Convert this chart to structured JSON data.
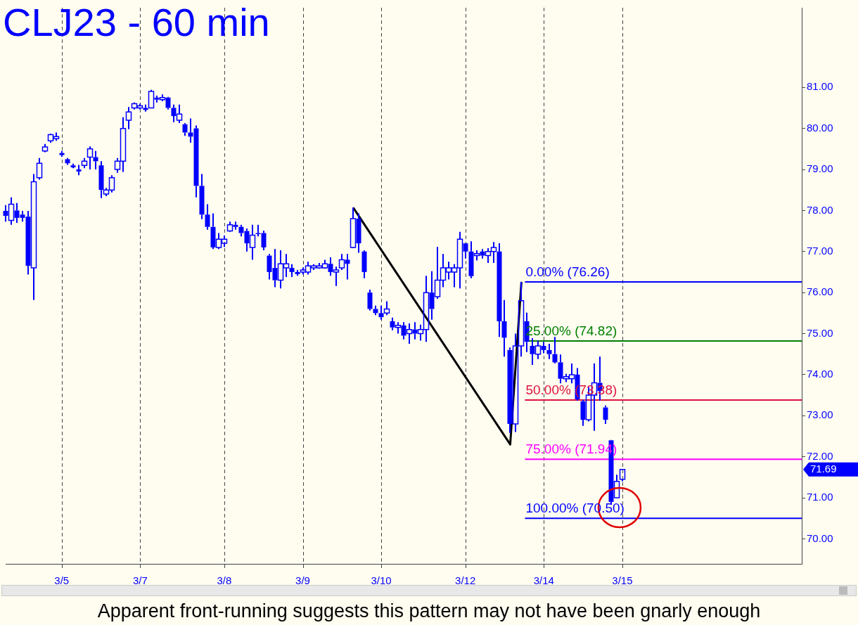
{
  "chart_data": {
    "type": "candlestick",
    "title": "CLJ23 - 60 min",
    "color": "#0000ff",
    "categories": [
      null,
      null,
      null,
      null,
      null,
      null,
      null,
      null,
      null,
      null,
      "3/5",
      null,
      null,
      null,
      null,
      null,
      null,
      null,
      null,
      null,
      null,
      null,
      null,
      null,
      "3/7",
      null,
      null,
      null,
      null,
      null,
      null,
      null,
      null,
      null,
      null,
      null,
      null,
      null,
      null,
      "3/8",
      null,
      null,
      null,
      null,
      null,
      null,
      null,
      null,
      null,
      null,
      null,
      null,
      null,
      "3/9",
      null,
      null,
      null,
      null,
      null,
      null,
      null,
      null,
      null,
      null,
      null,
      null,
      null,
      "3/10",
      null,
      null,
      null,
      null,
      null,
      null,
      null,
      null,
      null,
      null,
      null,
      null,
      null,
      null,
      "3/12",
      null,
      null,
      null,
      null,
      null,
      null,
      null,
      null,
      null,
      null,
      null,
      null,
      null,
      "3/14",
      null,
      null,
      null,
      null,
      null,
      null,
      null,
      null,
      null,
      null,
      null,
      null,
      null,
      "3/15",
      null,
      null,
      null,
      null,
      null,
      null,
      null,
      null,
      null,
      null,
      null,
      null,
      null,
      null,
      null,
      null,
      null,
      null,
      null,
      null,
      null,
      null,
      null,
      null,
      null,
      null,
      null,
      null,
      null,
      null,
      null,
      null
    ],
    "ohlc": [
      [
        77.99,
        78.13,
        77.73,
        77.87
      ],
      [
        77.76,
        78.32,
        77.65,
        78.15
      ],
      [
        78.0,
        78.18,
        77.7,
        77.82
      ],
      [
        77.9,
        77.99,
        77.73,
        77.82
      ],
      [
        77.85,
        77.99,
        76.44,
        76.65
      ],
      [
        76.6,
        78.89,
        75.82,
        78.7
      ],
      [
        78.8,
        79.28,
        78.75,
        79.15
      ],
      [
        79.45,
        79.62,
        79.42,
        79.55
      ],
      [
        79.7,
        79.87,
        79.65,
        79.85
      ],
      [
        79.75,
        79.9,
        79.7,
        79.8
      ],
      [
        79.4,
        79.45,
        79.31,
        79.35
      ],
      [
        79.25,
        79.28,
        79.11,
        79.15
      ],
      [
        79.1,
        79.14,
        79.03,
        79.05
      ],
      [
        79.0,
        79.11,
        78.86,
        78.95
      ],
      [
        79.1,
        79.28,
        79.03,
        79.2
      ],
      [
        79.3,
        79.56,
        79.0,
        79.5
      ],
      [
        79.3,
        79.45,
        79.0,
        79.2
      ],
      [
        79.1,
        79.2,
        78.3,
        78.5
      ],
      [
        78.4,
        78.55,
        78.35,
        78.5
      ],
      [
        78.5,
        78.86,
        78.44,
        78.8
      ],
      [
        79.0,
        79.28,
        78.92,
        79.2
      ],
      [
        79.2,
        80.27,
        78.94,
        80.0
      ],
      [
        80.2,
        80.52,
        79.98,
        80.4
      ],
      [
        80.5,
        80.63,
        80.46,
        80.6
      ],
      [
        80.5,
        80.6,
        80.46,
        80.55
      ],
      [
        80.5,
        80.58,
        80.41,
        80.45
      ],
      [
        80.5,
        80.94,
        80.49,
        80.9
      ],
      [
        80.75,
        80.8,
        80.63,
        80.7
      ],
      [
        80.7,
        80.83,
        80.66,
        80.75
      ],
      [
        80.75,
        80.77,
        80.46,
        80.5
      ],
      [
        80.5,
        80.58,
        80.15,
        80.3
      ],
      [
        80.2,
        80.58,
        80.13,
        80.35
      ],
      [
        80.1,
        80.13,
        79.82,
        79.9
      ],
      [
        79.9,
        80.24,
        79.65,
        79.8
      ],
      [
        80.0,
        80.07,
        78.32,
        78.6
      ],
      [
        78.6,
        78.89,
        77.79,
        77.9
      ],
      [
        77.9,
        78.15,
        77.53,
        77.6
      ],
      [
        77.6,
        77.93,
        77.06,
        77.1
      ],
      [
        77.1,
        77.45,
        77.06,
        77.3
      ],
      [
        77.2,
        77.39,
        77.11,
        77.3
      ],
      [
        77.5,
        77.73,
        77.48,
        77.65
      ],
      [
        77.65,
        77.73,
        77.53,
        77.6
      ],
      [
        77.6,
        77.65,
        77.37,
        77.45
      ],
      [
        77.5,
        77.56,
        77.0,
        77.2
      ],
      [
        77.1,
        77.65,
        76.8,
        77.4
      ],
      [
        77.45,
        77.65,
        77.37,
        77.45
      ],
      [
        77.45,
        77.51,
        77.03,
        77.1
      ],
      [
        76.9,
        76.94,
        76.32,
        76.5
      ],
      [
        76.6,
        77.06,
        76.13,
        76.3
      ],
      [
        76.3,
        77.03,
        76.1,
        76.7
      ],
      [
        76.6,
        76.94,
        76.38,
        76.7
      ],
      [
        76.6,
        76.69,
        76.38,
        76.5
      ],
      [
        76.5,
        76.55,
        76.41,
        76.45
      ],
      [
        76.5,
        76.61,
        76.44,
        76.55
      ],
      [
        76.5,
        76.75,
        76.44,
        76.65
      ],
      [
        76.6,
        76.69,
        76.55,
        76.65
      ],
      [
        76.6,
        76.72,
        76.58,
        76.65
      ],
      [
        76.6,
        76.8,
        76.58,
        76.7
      ],
      [
        76.7,
        76.86,
        76.41,
        76.5
      ],
      [
        76.5,
        76.63,
        76.16,
        76.55
      ],
      [
        76.6,
        76.94,
        76.55,
        76.8
      ],
      [
        76.8,
        76.94,
        76.32,
        76.7
      ],
      [
        77.1,
        78.07,
        77.08,
        77.8
      ],
      [
        77.8,
        77.93,
        76.97,
        77.2
      ],
      [
        77.0,
        77.03,
        76.35,
        76.5
      ],
      [
        76.0,
        76.07,
        75.56,
        75.6
      ],
      [
        75.6,
        75.68,
        75.45,
        75.5
      ],
      [
        75.5,
        75.68,
        75.34,
        75.4
      ],
      [
        75.5,
        75.79,
        75.45,
        75.6
      ],
      [
        75.3,
        75.39,
        75.08,
        75.15
      ],
      [
        75.15,
        75.28,
        75.0,
        75.2
      ],
      [
        75.2,
        75.28,
        74.86,
        74.95
      ],
      [
        75.0,
        75.25,
        74.75,
        75.1
      ],
      [
        75.1,
        75.28,
        74.86,
        75.0
      ],
      [
        75.0,
        75.22,
        74.83,
        75.1
      ],
      [
        75.1,
        76.41,
        74.8,
        76.0
      ],
      [
        76.0,
        76.52,
        75.34,
        75.6
      ],
      [
        75.9,
        77.11,
        75.85,
        76.3
      ],
      [
        76.3,
        76.94,
        76.13,
        76.6
      ],
      [
        76.5,
        76.75,
        76.32,
        76.6
      ],
      [
        76.5,
        76.69,
        76.13,
        76.6
      ],
      [
        76.6,
        77.48,
        76.1,
        77.3
      ],
      [
        77.2,
        77.2,
        76.83,
        77.0
      ],
      [
        77.0,
        77.25,
        76.35,
        76.4
      ],
      [
        76.9,
        77.03,
        76.78,
        76.95
      ],
      [
        77.0,
        77.06,
        76.83,
        76.9
      ],
      [
        76.9,
        77.08,
        76.72,
        77.0
      ],
      [
        77.0,
        77.23,
        76.72,
        77.1
      ],
      [
        77.0,
        77.2,
        74.92,
        75.3
      ],
      [
        75.3,
        75.82,
        74.44,
        74.9
      ],
      [
        74.6,
        74.66,
        72.58,
        72.8
      ],
      [
        72.8,
        75.0,
        72.6,
        74.7
      ],
      [
        74.7,
        76.26,
        74.44,
        75.8
      ],
      [
        75.3,
        75.51,
        74.55,
        74.8
      ],
      [
        74.7,
        74.89,
        74.24,
        74.5
      ],
      [
        74.5,
        74.83,
        74.38,
        74.7
      ],
      [
        74.7,
        74.8,
        74.52,
        74.6
      ],
      [
        74.6,
        74.75,
        74.38,
        74.5
      ],
      [
        74.5,
        74.92,
        74.27,
        74.3
      ],
      [
        74.3,
        74.49,
        73.79,
        73.9
      ],
      [
        73.9,
        74.02,
        73.82,
        73.95
      ],
      [
        73.9,
        74.27,
        73.79,
        74.0
      ],
      [
        74.0,
        74.16,
        73.37,
        73.4
      ],
      [
        73.35,
        73.39,
        72.75,
        72.9
      ],
      [
        72.9,
        73.7,
        72.86,
        73.5
      ],
      [
        73.5,
        74.27,
        72.63,
        73.8
      ],
      [
        73.8,
        74.44,
        73.37,
        73.6
      ],
      [
        73.2,
        73.25,
        72.8,
        72.9
      ],
      [
        72.4,
        72.41,
        70.83,
        70.9
      ],
      [
        71.0,
        71.56,
        71.0,
        71.4
      ],
      [
        71.45,
        71.7,
        71.4,
        71.69
      ],
      null,
      null,
      null,
      null,
      null,
      null,
      null,
      null,
      null,
      null,
      null,
      null,
      null,
      null,
      null,
      null,
      null,
      null,
      null,
      null,
      null,
      null,
      null,
      null,
      null,
      null,
      null,
      null,
      null,
      null,
      null,
      null
    ],
    "series": [
      {
        "type": "line",
        "color": "#000000",
        "values": [
          null,
          null,
          null,
          null,
          null,
          null,
          null,
          null,
          null,
          null,
          null,
          null,
          null,
          null,
          null,
          null,
          null,
          null,
          null,
          null,
          null,
          null,
          null,
          null,
          null,
          null,
          null,
          null,
          null,
          null,
          null,
          null,
          null,
          null,
          null,
          null,
          null,
          null,
          null,
          null,
          null,
          null,
          null,
          null,
          null,
          null,
          null,
          null,
          null,
          null,
          null,
          null,
          null,
          null,
          null,
          null,
          null,
          null,
          null,
          null,
          null,
          null,
          78.07,
          null,
          null,
          null,
          null,
          null,
          null,
          null,
          null,
          null,
          null,
          null,
          null,
          null,
          null,
          null,
          null,
          null,
          null,
          null,
          null,
          null,
          null,
          null,
          null,
          null,
          null,
          null,
          72.3,
          null,
          76.26,
          null,
          null,
          null,
          null,
          null,
          null,
          null,
          null,
          null,
          null,
          null,
          null,
          null,
          null,
          null,
          null,
          null,
          null,
          null,
          null,
          null,
          null,
          null,
          null,
          null,
          null,
          null,
          null,
          null,
          null,
          null,
          null,
          null,
          null,
          null,
          null,
          null,
          null,
          null,
          null,
          null,
          null,
          null,
          null,
          null,
          null,
          null,
          null,
          null,
          null
        ]
      }
    ],
    "ylim": [
      69.39,
      82.94
    ],
    "yticks": [
      {
        "value": 70,
        "label": "70.00"
      },
      {
        "value": 71,
        "label": "71.00"
      },
      {
        "value": 72,
        "label": "72.00"
      },
      {
        "value": 73,
        "label": "73.00"
      },
      {
        "value": 74,
        "label": "74.00"
      },
      {
        "value": 75,
        "label": "75.00"
      },
      {
        "value": 76,
        "label": "76.00"
      },
      {
        "value": 77,
        "label": "77.00"
      },
      {
        "value": 78,
        "label": "78.00"
      },
      {
        "value": 79,
        "label": "79.00"
      },
      {
        "value": 80,
        "label": "80.00"
      },
      {
        "value": 81,
        "label": "81.00"
      }
    ],
    "grid": "x",
    "legend": false,
    "ref_lines": [
      {
        "axis": "y",
        "value": 76.26,
        "label": "0.00% (76.26)",
        "color": "#0000ff"
      },
      {
        "axis": "y",
        "value": 74.82,
        "label": "25.00% (74.82)",
        "color": "#008000"
      },
      {
        "axis": "y",
        "value": 73.38,
        "label": "50.00% (73.38)",
        "color": "#dc143c"
      },
      {
        "axis": "y",
        "value": 71.94,
        "label": "75.00% (71.94)",
        "color": "#ff00ff"
      },
      {
        "axis": "y",
        "value": 70.5,
        "label": "100.00% (70.50)",
        "color": "#0000ff"
      }
    ],
    "annotations": [
      "71.69",
      "Apparent front-running suggests this pattern may not have been gnarly enough"
    ]
  }
}
